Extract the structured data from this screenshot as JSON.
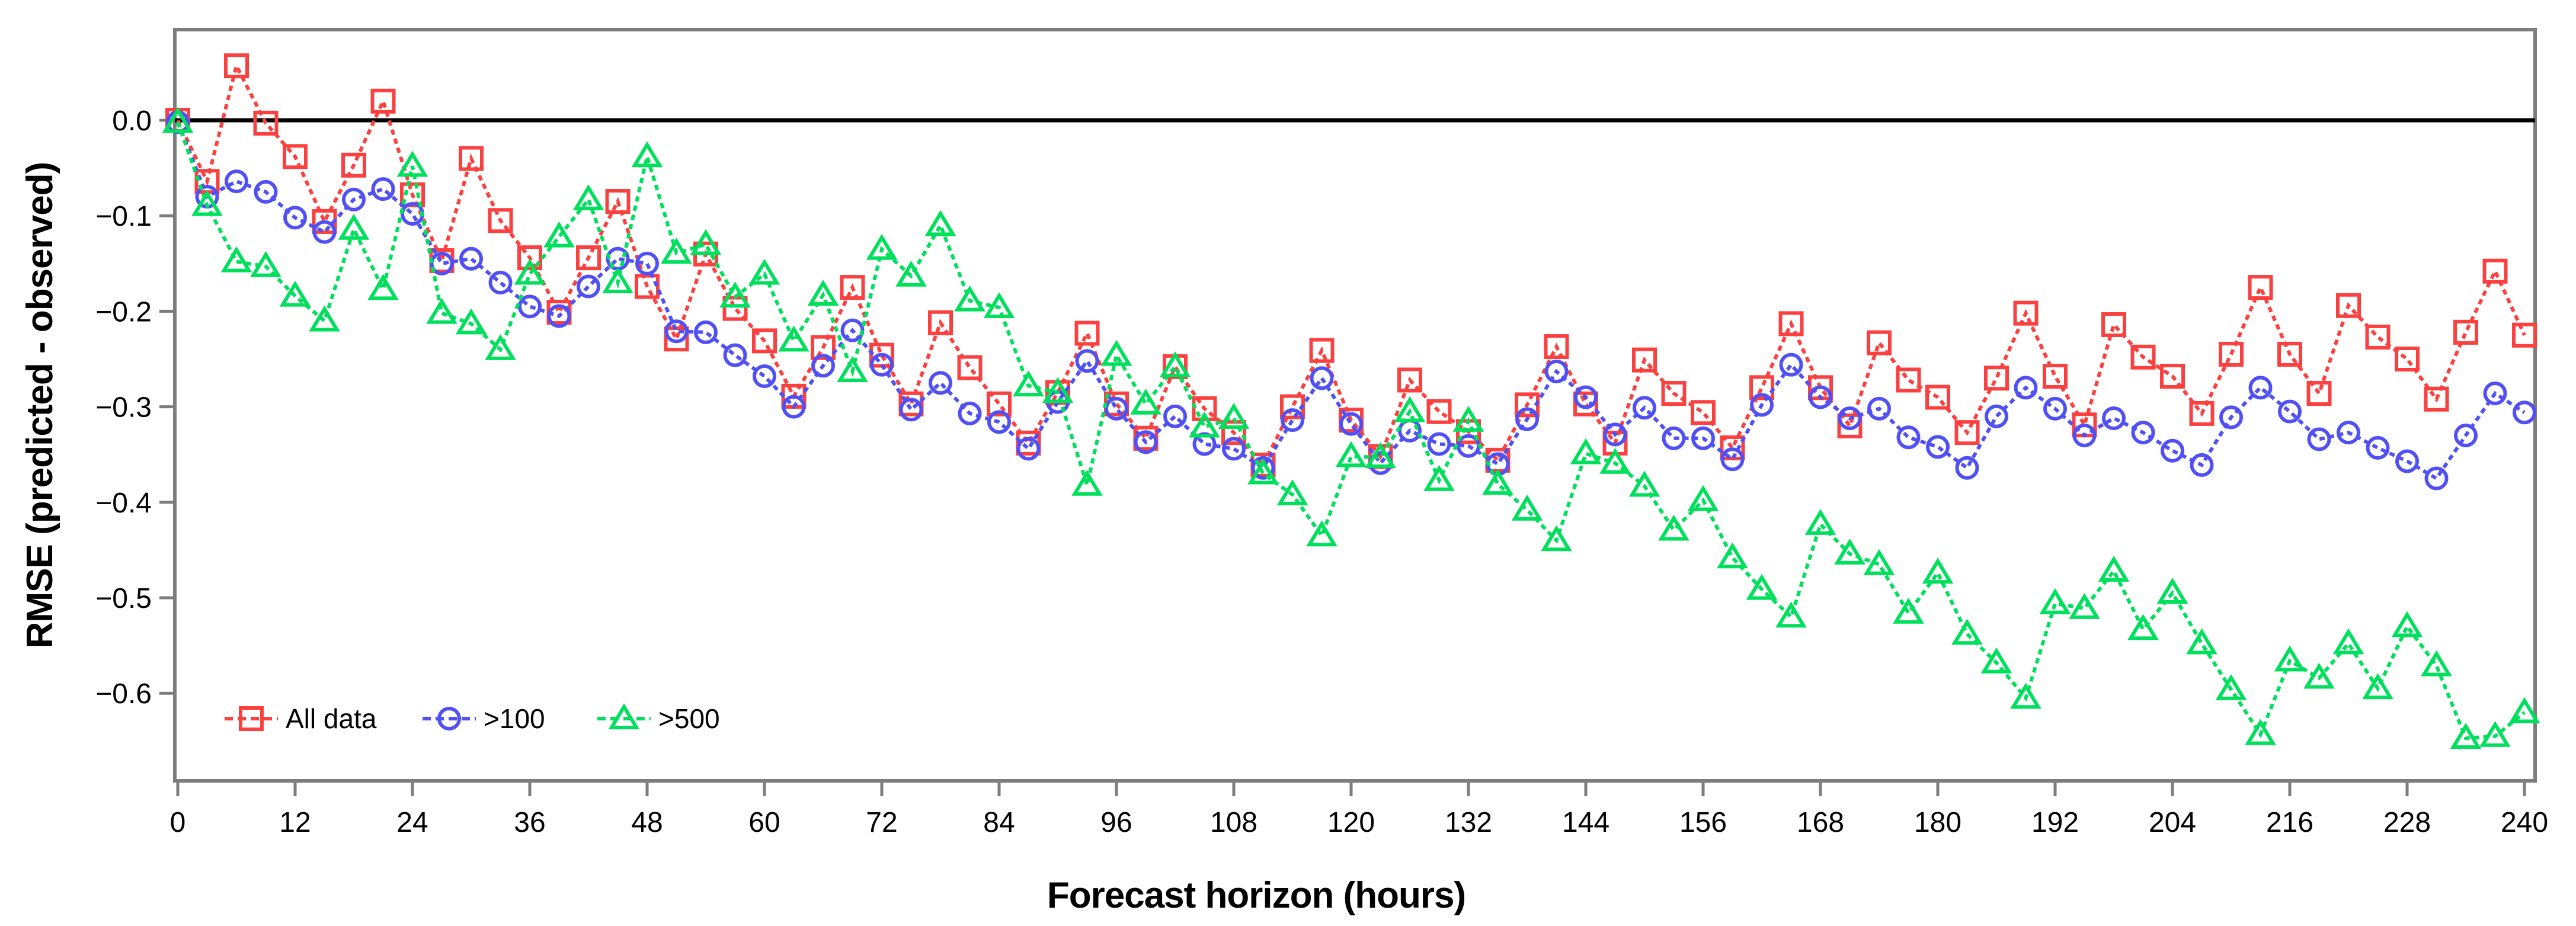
{
  "chart_data": {
    "type": "line",
    "title": "",
    "xlabel": "Forecast horizon (hours)",
    "ylabel": "RMSE (predicted - observed)",
    "xlim": [
      0,
      241
    ],
    "ylim": [
      -0.692,
      0.095
    ],
    "grid": false,
    "zero_line": true,
    "legend_position": "bottom-left-inside",
    "xticks": [
      0,
      12,
      24,
      36,
      48,
      60,
      72,
      84,
      96,
      108,
      120,
      132,
      144,
      156,
      168,
      180,
      192,
      204,
      216,
      228,
      240
    ],
    "xtick_labels": [
      "0",
      "12",
      "24",
      "36",
      "48",
      "60",
      "72",
      "84",
      "96",
      "108",
      "120",
      "132",
      "144",
      "156",
      "168",
      "180",
      "192",
      "204",
      "216",
      "228",
      "240"
    ],
    "ytick_values": [
      0.0,
      -0.1,
      -0.2,
      -0.3,
      -0.4,
      -0.5,
      -0.6
    ],
    "ytick_labels": [
      "0.0",
      "−0.1",
      "−0.2",
      "−0.3",
      "−0.4",
      "−0.5",
      "−0.6"
    ],
    "x": [
      0,
      3,
      6,
      9,
      12,
      15,
      18,
      21,
      24,
      27,
      30,
      33,
      36,
      39,
      42,
      45,
      48,
      51,
      54,
      57,
      60,
      63,
      66,
      69,
      72,
      75,
      78,
      81,
      84,
      87,
      90,
      93,
      96,
      99,
      102,
      105,
      108,
      111,
      114,
      117,
      120,
      123,
      126,
      129,
      132,
      135,
      138,
      141,
      144,
      147,
      150,
      153,
      156,
      159,
      162,
      165,
      168,
      171,
      174,
      177,
      180,
      183,
      186,
      189,
      192,
      195,
      198,
      201,
      204,
      207,
      210,
      213,
      216,
      219,
      222,
      225,
      228,
      231,
      234,
      237,
      240
    ],
    "series": [
      {
        "name": "All data",
        "color": "#fb4040",
        "marker": "square",
        "values": [
          0.0,
          -0.064,
          0.057,
          -0.003,
          -0.038,
          -0.106,
          -0.047,
          0.02,
          -0.078,
          -0.147,
          -0.04,
          -0.105,
          -0.144,
          -0.201,
          -0.144,
          -0.085,
          -0.174,
          -0.229,
          -0.14,
          -0.197,
          -0.231,
          -0.289,
          -0.238,
          -0.175,
          -0.246,
          -0.297,
          -0.212,
          -0.259,
          -0.297,
          -0.338,
          -0.285,
          -0.223,
          -0.297,
          -0.333,
          -0.258,
          -0.302,
          -0.327,
          -0.361,
          -0.3,
          -0.241,
          -0.314,
          -0.352,
          -0.272,
          -0.305,
          -0.326,
          -0.356,
          -0.298,
          -0.237,
          -0.297,
          -0.338,
          -0.251,
          -0.286,
          -0.306,
          -0.343,
          -0.28,
          -0.213,
          -0.28,
          -0.32,
          -0.233,
          -0.272,
          -0.29,
          -0.327,
          -0.27,
          -0.202,
          -0.268,
          -0.319,
          -0.214,
          -0.248,
          -0.268,
          -0.307,
          -0.245,
          -0.175,
          -0.245,
          -0.286,
          -0.194,
          -0.227,
          -0.25,
          -0.292,
          -0.222,
          -0.158,
          -0.225
        ]
      },
      {
        "name": ">100",
        "color": "#5050f5",
        "marker": "circle",
        "values": [
          -0.002,
          -0.08,
          -0.064,
          -0.075,
          -0.102,
          -0.117,
          -0.083,
          -0.072,
          -0.098,
          -0.15,
          -0.145,
          -0.17,
          -0.195,
          -0.205,
          -0.174,
          -0.145,
          -0.15,
          -0.221,
          -0.222,
          -0.246,
          -0.268,
          -0.3,
          -0.257,
          -0.22,
          -0.256,
          -0.303,
          -0.275,
          -0.307,
          -0.316,
          -0.344,
          -0.295,
          -0.252,
          -0.302,
          -0.337,
          -0.31,
          -0.339,
          -0.344,
          -0.364,
          -0.314,
          -0.27,
          -0.318,
          -0.359,
          -0.325,
          -0.339,
          -0.341,
          -0.36,
          -0.313,
          -0.263,
          -0.29,
          -0.329,
          -0.301,
          -0.333,
          -0.333,
          -0.355,
          -0.298,
          -0.256,
          -0.29,
          -0.312,
          -0.302,
          -0.332,
          -0.342,
          -0.364,
          -0.31,
          -0.28,
          -0.302,
          -0.33,
          -0.312,
          -0.327,
          -0.346,
          -0.361,
          -0.311,
          -0.28,
          -0.305,
          -0.334,
          -0.327,
          -0.343,
          -0.357,
          -0.375,
          -0.33,
          -0.286,
          -0.306
        ]
      },
      {
        "name": ">500",
        "color": "#00e05c",
        "marker": "triangle",
        "values": [
          -0.002,
          -0.089,
          -0.148,
          -0.153,
          -0.184,
          -0.21,
          -0.114,
          -0.177,
          -0.048,
          -0.202,
          -0.213,
          -0.24,
          -0.161,
          -0.122,
          -0.083,
          -0.17,
          -0.038,
          -0.139,
          -0.13,
          -0.185,
          -0.161,
          -0.231,
          -0.183,
          -0.263,
          -0.135,
          -0.163,
          -0.11,
          -0.189,
          -0.196,
          -0.278,
          -0.285,
          -0.382,
          -0.246,
          -0.297,
          -0.258,
          -0.321,
          -0.312,
          -0.37,
          -0.392,
          -0.435,
          -0.352,
          -0.353,
          -0.305,
          -0.377,
          -0.315,
          -0.381,
          -0.408,
          -0.44,
          -0.349,
          -0.359,
          -0.383,
          -0.429,
          -0.398,
          -0.458,
          -0.491,
          -0.52,
          -0.423,
          -0.454,
          -0.465,
          -0.516,
          -0.474,
          -0.538,
          -0.568,
          -0.605,
          -0.506,
          -0.511,
          -0.472,
          -0.533,
          -0.495,
          -0.548,
          -0.596,
          -0.643,
          -0.566,
          -0.584,
          -0.548,
          -0.595,
          -0.53,
          -0.571,
          -0.647,
          -0.645,
          -0.62
        ]
      }
    ],
    "colors": {
      "frame": "#7d7d7d",
      "zero_line": "#000000",
      "background": "#ffffff",
      "tick": "#7d7d7d"
    }
  }
}
